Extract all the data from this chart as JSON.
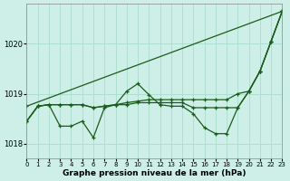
{
  "background_color": "#ceeee8",
  "grid_color": "#aaddcc",
  "line_color": "#1a5c1a",
  "ylabel_ticks": [
    1018,
    1019,
    1020
  ],
  "xlim": [
    0,
    23
  ],
  "ylim": [
    1017.7,
    1020.8
  ],
  "xlabel": "Graphe pression niveau de la mer (hPa)",
  "lines": [
    {
      "x": [
        0,
        1,
        2,
        3,
        4,
        5,
        6,
        7,
        8,
        9,
        10,
        11,
        12,
        13,
        14,
        15,
        16,
        17,
        18,
        19,
        20,
        21,
        22,
        23
      ],
      "y": [
        1018.45,
        1018.75,
        1018.78,
        1018.35,
        1018.35,
        1018.45,
        1018.12,
        1018.72,
        1018.78,
        1019.05,
        1019.2,
        1018.98,
        1018.78,
        1018.75,
        1018.75,
        1018.6,
        1018.32,
        1018.2,
        1018.2,
        1018.72,
        1019.05,
        1019.45,
        1020.05,
        1020.65
      ]
    },
    {
      "x": [
        0,
        23
      ],
      "y": [
        1018.75,
        1020.65
      ]
    },
    {
      "x": [
        0,
        1,
        2,
        3,
        4,
        5,
        6,
        7,
        8,
        9,
        10,
        11,
        12,
        13,
        14,
        15,
        16,
        17,
        18,
        19,
        20,
        21,
        22,
        23
      ],
      "y": [
        1018.45,
        1018.75,
        1018.78,
        1018.78,
        1018.78,
        1018.78,
        1018.72,
        1018.75,
        1018.78,
        1018.82,
        1018.85,
        1018.88,
        1018.88,
        1018.88,
        1018.88,
        1018.88,
        1018.88,
        1018.88,
        1018.88,
        1019.0,
        1019.05,
        1019.45,
        1020.05,
        1020.65
      ]
    },
    {
      "x": [
        0,
        1,
        2,
        3,
        4,
        5,
        6,
        7,
        8,
        9,
        10,
        11,
        12,
        13,
        14,
        15,
        16,
        17,
        18,
        19,
        20,
        21,
        22,
        23
      ],
      "y": [
        1018.45,
        1018.75,
        1018.78,
        1018.78,
        1018.78,
        1018.78,
        1018.72,
        1018.75,
        1018.78,
        1018.78,
        1018.82,
        1018.82,
        1018.82,
        1018.82,
        1018.82,
        1018.72,
        1018.72,
        1018.72,
        1018.72,
        1018.72,
        1019.05,
        1019.45,
        1020.05,
        1020.65
      ]
    }
  ]
}
